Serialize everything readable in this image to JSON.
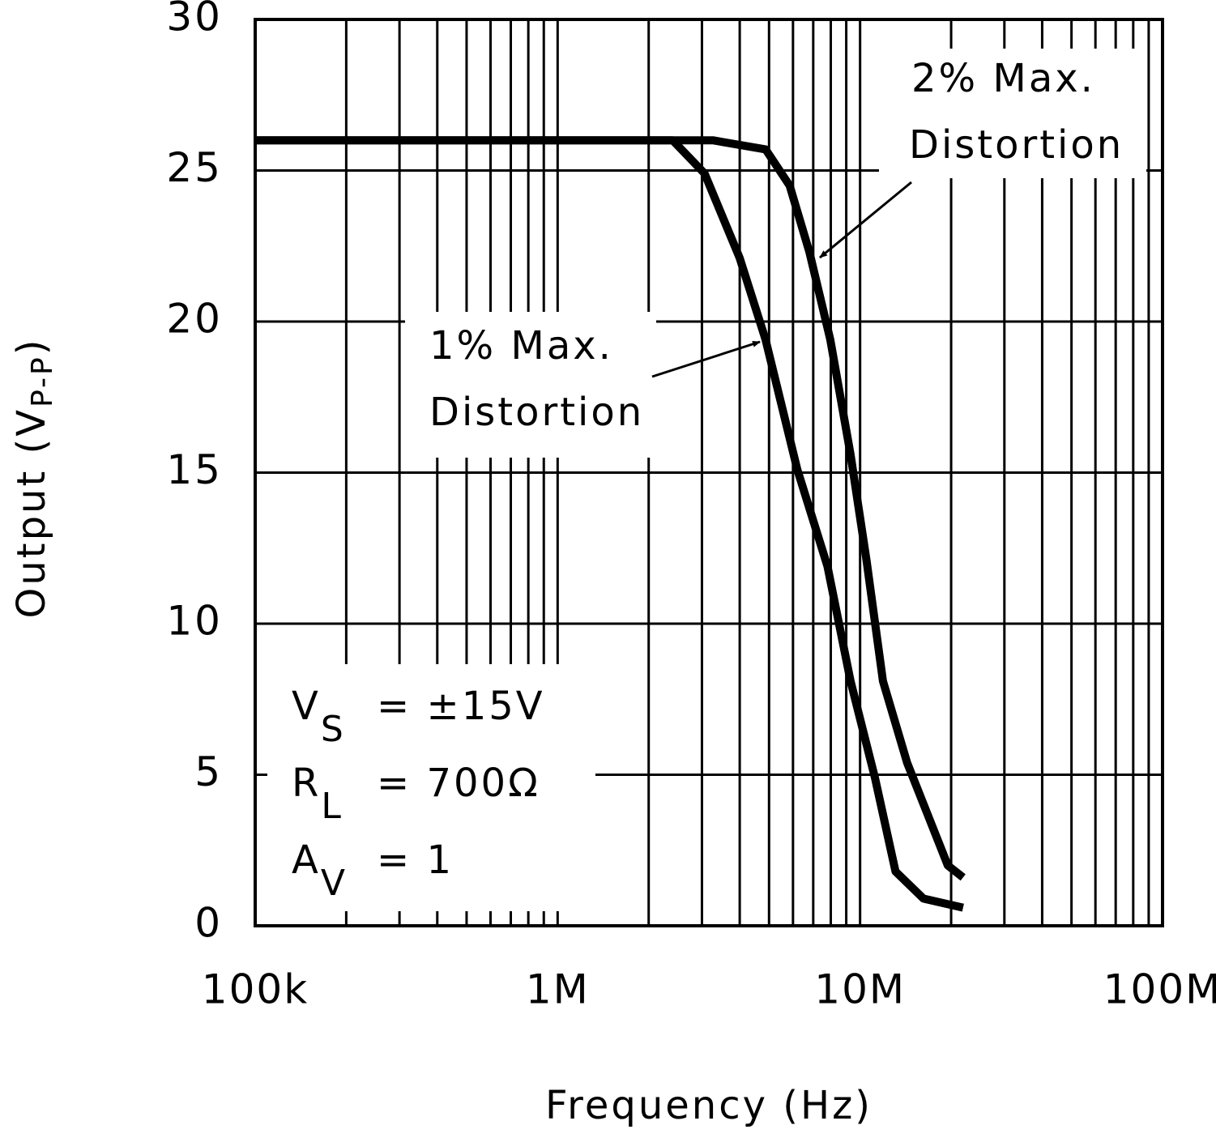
{
  "chart_data": {
    "type": "line",
    "x_label": "Frequency (Hz)",
    "y_label": {
      "text": "Output (V",
      "sub": "P-P",
      "end": ")"
    },
    "xscale": "log",
    "xlim": [
      100000,
      100000000
    ],
    "ylim": [
      0,
      30
    ],
    "xticks": [
      {
        "value": 100000,
        "label": "100k"
      },
      {
        "value": 1000000,
        "label": "1M"
      },
      {
        "value": 10000000,
        "label": "10M"
      },
      {
        "value": 100000000,
        "label": "100M"
      }
    ],
    "xminorticks": [
      200000,
      300000,
      400000,
      500000,
      600000,
      700000,
      800000,
      900000,
      2000000,
      3000000,
      4000000,
      5000000,
      6000000,
      7000000,
      8000000,
      9000000,
      20000000,
      30000000,
      40000000,
      50000000,
      60000000,
      70000000,
      80000000,
      90000000
    ],
    "yticks": [
      0,
      5,
      10,
      15,
      20,
      25,
      30
    ],
    "grid": true,
    "series": [
      {
        "color": "#000000",
        "label": [
          "1% Max.",
          "Distortion"
        ],
        "x": [
          100000,
          2400000,
          3060000,
          4000000,
          4870000,
          6200000,
          7800000,
          9300000,
          11200000,
          13100000,
          16200000,
          21900000
        ],
        "values": [
          26,
          26,
          24.9,
          22.1,
          19.4,
          15.1,
          11.9,
          8.1,
          4.9,
          1.8,
          0.9,
          0.6
        ]
      },
      {
        "color": "#000000",
        "label": [
          "2% Max.",
          "Distortion"
        ],
        "x": [
          100000,
          3260000,
          4870000,
          5850000,
          6800000,
          7970000,
          9300000,
          10500000,
          11900000,
          14300000,
          19500000,
          21900000
        ],
        "values": [
          26,
          26,
          25.7,
          24.5,
          22.3,
          19.4,
          15.6,
          12.1,
          8.1,
          5.4,
          2.0,
          1.6
        ]
      }
    ],
    "conditions": [
      {
        "symbol": "V",
        "sub": "S",
        "text": "= ±15V"
      },
      {
        "symbol": "R",
        "sub": "L",
        "text": "= 700Ω"
      },
      {
        "symbol": "A",
        "sub": "V",
        "text": "= 1"
      }
    ]
  }
}
